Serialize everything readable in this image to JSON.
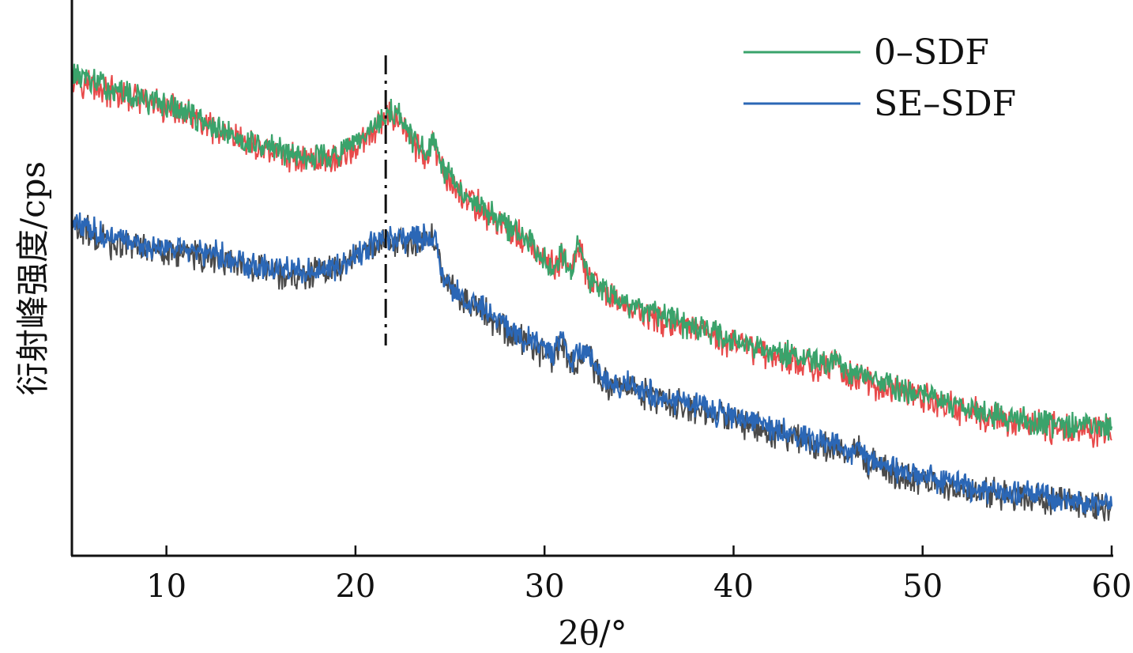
{
  "chart_data": {
    "type": "line",
    "xlabel": "2θ/°",
    "ylabel": "衍射峰强度/cps",
    "xlim": [
      5,
      60
    ],
    "ylim": [
      0,
      100
    ],
    "x_ticks": [
      10,
      20,
      30,
      40,
      50,
      60
    ],
    "x_tick_labels": [
      "10",
      "20",
      "30",
      "40",
      "50",
      "60"
    ],
    "y_ticks_shown": false,
    "grid": false,
    "legend_position": "top-right",
    "reference_line": {
      "x": 21.6,
      "style": "dash-dot",
      "color": "#111111"
    },
    "series": [
      {
        "name": "0–SDF",
        "color": "#3aa36b",
        "under_color": "#e84a4a",
        "x": [
          5,
          7,
          9,
          11,
          13,
          15,
          17,
          19,
          20.5,
          21.5,
          22.2,
          23,
          23.8,
          24.1,
          24.5,
          25.5,
          27,
          29,
          30.5,
          30.9,
          31.4,
          31.8,
          32.3,
          33.5,
          36,
          39,
          42,
          45,
          45.5,
          46,
          47,
          50,
          53,
          56,
          60
        ],
        "values": [
          87,
          84,
          82,
          80,
          76,
          74,
          72,
          72,
          75,
          79,
          80,
          75,
          72,
          75,
          70,
          66,
          62,
          57,
          52,
          55,
          51,
          57,
          50,
          47,
          43,
          40,
          37,
          34,
          36,
          33,
          32,
          29,
          26,
          24,
          23
        ]
      },
      {
        "name": "SE–SDF",
        "color": "#2b67b6",
        "under_color": "#4a4a4a",
        "x": [
          5,
          7,
          9,
          11,
          13,
          15,
          17,
          19,
          20.5,
          21.5,
          22.5,
          23.5,
          24.2,
          24.6,
          25.5,
          27,
          29,
          30.5,
          30.9,
          31.3,
          32.3,
          33,
          35,
          38,
          41,
          44,
          45.5,
          46,
          46.7,
          47.2,
          50,
          53,
          56,
          60
        ],
        "values": [
          60,
          57,
          56,
          55,
          54,
          52,
          51,
          52,
          55,
          57,
          57,
          57,
          58,
          50,
          47,
          44,
          39,
          36,
          40,
          35,
          37,
          32,
          30,
          27,
          24,
          21,
          20,
          18,
          20,
          17,
          14,
          12,
          11,
          9
        ]
      }
    ]
  }
}
